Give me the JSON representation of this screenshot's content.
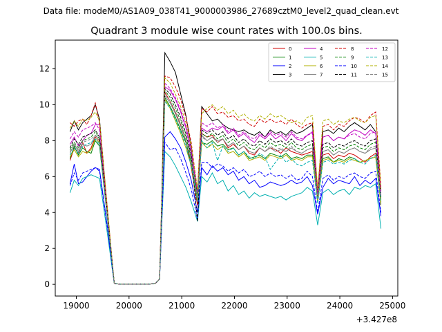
{
  "chart_data": {
    "type": "line",
    "suptitle": "Data file: modeM0/AS1A09_038T41_9000003986_27689cztM0_level2_quad_clean.evt",
    "title": "Quadrant 3 module wise count rates with 100.0s bins.",
    "xlabel": "",
    "ylabel": "",
    "x_offset_label": "+3.427e8",
    "xlim": [
      18600,
      25100
    ],
    "ylim": [
      -0.65,
      13.6
    ],
    "xticks": [
      19000,
      20000,
      21000,
      22000,
      23000,
      24000,
      25000
    ],
    "xtick_labels": [
      "19000",
      "20000",
      "21000",
      "22000",
      "23000",
      "24000",
      "25000"
    ],
    "yticks": [
      0,
      2,
      4,
      6,
      8,
      10,
      12
    ],
    "ytick_labels": [
      "0",
      "2",
      "4",
      "6",
      "8",
      "10",
      "12"
    ],
    "legend_position": "upper-right",
    "x": [
      18880,
      18960,
      19040,
      19120,
      19200,
      19280,
      19360,
      19440,
      19600,
      19680,
      19720,
      19800,
      19900,
      20000,
      20100,
      20200,
      20300,
      20400,
      20500,
      20580,
      20620,
      20680,
      20780,
      20880,
      20980,
      21080,
      21180,
      21300,
      21380,
      21480,
      21580,
      21680,
      21780,
      21880,
      21980,
      22080,
      22180,
      22280,
      22380,
      22480,
      22580,
      22680,
      22780,
      22880,
      22980,
      23080,
      23180,
      23280,
      23380,
      23480,
      23580,
      23680,
      23780,
      23880,
      23980,
      24080,
      24180,
      24280,
      24380,
      24480,
      24580,
      24680,
      24780
    ],
    "series": [
      {
        "name": "0",
        "color": "#d00000",
        "dash": false,
        "values": [
          6.9,
          7.6,
          7.3,
          7.9,
          7.3,
          7.6,
          8.2,
          8.0,
          3.5,
          1.2,
          0.05,
          0.02,
          0.02,
          0.02,
          0.02,
          0.02,
          0.02,
          0.02,
          0.05,
          0.3,
          4.0,
          10.7,
          10.2,
          9.6,
          8.9,
          8.0,
          6.5,
          4.4,
          8.4,
          8.2,
          8.3,
          7.9,
          8.1,
          7.6,
          7.8,
          7.5,
          7.7,
          7.3,
          7.2,
          7.6,
          7.4,
          7.6,
          7.5,
          7.3,
          7.6,
          7.4,
          7.3,
          7.2,
          7.3,
          7.4,
          4.6,
          7.2,
          7.3,
          7.0,
          7.2,
          7.1,
          7.3,
          7.2,
          7.0,
          6.8,
          7.1,
          7.3,
          4.6
        ]
      },
      {
        "name": "1",
        "color": "#008000",
        "dash": false,
        "values": [
          7.0,
          7.7,
          7.2,
          7.6,
          7.4,
          7.3,
          8.0,
          7.7,
          3.4,
          1.1,
          0.05,
          0.02,
          0.02,
          0.02,
          0.02,
          0.02,
          0.02,
          0.02,
          0.05,
          0.3,
          3.9,
          10.4,
          9.9,
          9.3,
          8.6,
          7.9,
          6.8,
          4.8,
          7.9,
          7.8,
          8.0,
          7.7,
          7.8,
          7.5,
          7.6,
          7.2,
          7.4,
          7.0,
          7.1,
          7.2,
          7.0,
          7.3,
          7.2,
          7.1,
          7.3,
          7.0,
          7.1,
          7.0,
          7.2,
          7.2,
          4.7,
          7.0,
          7.1,
          6.8,
          7.0,
          6.9,
          7.1,
          7.0,
          6.8,
          6.9,
          7.0,
          7.1,
          4.5
        ]
      },
      {
        "name": "2",
        "color": "#0000ff",
        "dash": false,
        "values": [
          5.6,
          6.7,
          5.6,
          5.7,
          6.0,
          6.3,
          6.5,
          6.4,
          3.0,
          0.9,
          0.05,
          0.02,
          0.02,
          0.02,
          0.02,
          0.02,
          0.02,
          0.02,
          0.05,
          0.3,
          3.3,
          8.2,
          8.5,
          8.1,
          7.6,
          6.8,
          5.8,
          4.0,
          6.5,
          6.1,
          6.6,
          6.3,
          6.5,
          6.1,
          6.3,
          5.8,
          6.0,
          5.6,
          5.8,
          5.4,
          5.5,
          5.7,
          5.6,
          5.5,
          5.6,
          5.8,
          5.6,
          5.7,
          6.0,
          5.5,
          3.9,
          5.4,
          5.9,
          5.6,
          5.8,
          5.7,
          5.6,
          6.0,
          5.5,
          5.8,
          5.6,
          5.9,
          3.8
        ]
      },
      {
        "name": "3",
        "color": "#000000",
        "dash": false,
        "values": [
          8.5,
          9.1,
          8.6,
          9.0,
          9.2,
          9.4,
          10.0,
          9.2,
          3.8,
          1.3,
          0.05,
          0.02,
          0.02,
          0.02,
          0.02,
          0.02,
          0.02,
          0.02,
          0.05,
          0.3,
          4.6,
          12.9,
          12.4,
          11.8,
          10.6,
          9.4,
          7.6,
          4.9,
          9.9,
          9.5,
          9.1,
          9.2,
          8.9,
          8.7,
          8.6,
          8.5,
          8.6,
          8.4,
          8.3,
          8.5,
          8.2,
          8.6,
          8.4,
          8.5,
          8.3,
          8.6,
          8.4,
          8.5,
          8.7,
          8.9,
          5.0,
          8.5,
          8.6,
          8.4,
          8.7,
          8.5,
          8.8,
          9.0,
          8.8,
          8.6,
          8.9,
          8.5,
          5.3
        ]
      },
      {
        "name": "4",
        "color": "#c000c0",
        "dash": false,
        "values": [
          7.8,
          8.2,
          7.7,
          8.0,
          8.3,
          8.4,
          8.9,
          8.9,
          3.7,
          1.2,
          0.05,
          0.02,
          0.02,
          0.02,
          0.02,
          0.02,
          0.02,
          0.02,
          0.05,
          0.3,
          4.3,
          11.0,
          10.8,
          10.3,
          9.6,
          8.7,
          7.3,
          5.2,
          8.7,
          8.5,
          8.7,
          8.6,
          8.8,
          8.4,
          8.6,
          8.2,
          8.4,
          8.1,
          7.9,
          8.3,
          8.1,
          8.4,
          8.1,
          8.3,
          8.0,
          8.4,
          8.1,
          8.0,
          8.3,
          8.5,
          5.1,
          8.2,
          8.3,
          8.0,
          8.2,
          8.1,
          8.4,
          8.6,
          8.5,
          8.3,
          8.6,
          8.4,
          5.2
        ]
      },
      {
        "name": "5",
        "color": "#00b0b0",
        "dash": false,
        "values": [
          5.1,
          5.8,
          5.5,
          5.9,
          6.0,
          6.1,
          6.0,
          5.9,
          2.6,
          0.9,
          0.05,
          0.02,
          0.02,
          0.02,
          0.02,
          0.02,
          0.02,
          0.02,
          0.05,
          0.3,
          3.2,
          7.4,
          7.1,
          6.6,
          6.0,
          5.4,
          4.6,
          3.5,
          6.0,
          5.7,
          6.2,
          5.6,
          5.8,
          5.2,
          5.5,
          5.0,
          5.2,
          4.8,
          5.1,
          4.9,
          5.0,
          4.9,
          4.8,
          4.9,
          4.7,
          4.9,
          5.0,
          5.1,
          5.4,
          5.2,
          3.3,
          5.1,
          5.3,
          5.0,
          5.2,
          5.3,
          5.0,
          5.4,
          5.3,
          5.5,
          5.4,
          5.6,
          3.1
        ]
      },
      {
        "name": "6",
        "color": "#b0b000",
        "dash": false,
        "values": [
          7.1,
          7.5,
          7.1,
          7.4,
          7.3,
          7.5,
          8.1,
          7.9,
          3.4,
          1.1,
          0.05,
          0.02,
          0.02,
          0.02,
          0.02,
          0.02,
          0.02,
          0.02,
          0.05,
          0.3,
          3.9,
          10.3,
          9.8,
          9.1,
          8.4,
          7.6,
          6.6,
          4.6,
          7.9,
          7.6,
          7.8,
          7.5,
          7.7,
          7.3,
          7.4,
          7.1,
          7.3,
          6.9,
          7.0,
          7.1,
          6.9,
          7.2,
          7.1,
          7.0,
          7.2,
          6.9,
          7.0,
          6.9,
          7.1,
          7.1,
          4.6,
          6.9,
          7.0,
          6.8,
          6.9,
          6.8,
          7.0,
          6.9,
          6.8,
          6.9,
          7.0,
          7.1,
          4.4
        ]
      },
      {
        "name": "7",
        "color": "#808080",
        "dash": false,
        "values": [
          7.3,
          7.8,
          7.4,
          7.8,
          7.7,
          7.8,
          8.3,
          8.1,
          3.5,
          1.2,
          0.05,
          0.02,
          0.02,
          0.02,
          0.02,
          0.02,
          0.02,
          0.02,
          0.05,
          0.3,
          4.1,
          10.5,
          10.1,
          9.5,
          8.8,
          8.0,
          6.9,
          4.9,
          8.3,
          8.0,
          8.2,
          8.0,
          8.1,
          7.7,
          7.9,
          7.5,
          7.7,
          7.4,
          7.3,
          7.6,
          7.4,
          7.6,
          7.4,
          7.5,
          7.4,
          7.6,
          7.4,
          7.3,
          7.5,
          7.6,
          4.8,
          7.4,
          7.5,
          7.2,
          7.4,
          7.3,
          7.5,
          7.6,
          7.4,
          7.3,
          7.5,
          7.6,
          4.7
        ]
      },
      {
        "name": "8",
        "color": "#d00000",
        "dash": true,
        "values": [
          9.0,
          8.8,
          9.1,
          9.2,
          8.9,
          9.4,
          10.1,
          9.0,
          3.9,
          1.3,
          0.05,
          0.02,
          0.02,
          0.02,
          0.02,
          0.02,
          0.02,
          0.02,
          0.05,
          0.3,
          4.5,
          11.6,
          11.5,
          11.0,
          10.3,
          9.3,
          7.9,
          5.2,
          9.8,
          9.6,
          9.9,
          9.5,
          9.6,
          9.3,
          9.4,
          9.1,
          9.2,
          8.9,
          8.8,
          9.2,
          9.0,
          9.2,
          9.0,
          9.1,
          8.9,
          9.2,
          8.9,
          8.7,
          8.9,
          9.0,
          5.2,
          8.8,
          8.9,
          8.6,
          8.9,
          8.8,
          9.1,
          9.3,
          9.2,
          9.0,
          9.4,
          9.6,
          5.4
        ]
      },
      {
        "name": "9",
        "color": "#008000",
        "dash": true,
        "values": [
          7.5,
          7.9,
          7.6,
          8.0,
          8.1,
          8.2,
          8.5,
          8.1,
          3.5,
          1.2,
          0.05,
          0.02,
          0.02,
          0.02,
          0.02,
          0.02,
          0.02,
          0.02,
          0.05,
          0.3,
          4.1,
          10.8,
          10.4,
          9.8,
          9.1,
          8.2,
          7.0,
          4.9,
          8.4,
          8.2,
          8.4,
          8.1,
          8.3,
          7.9,
          8.1,
          7.7,
          7.9,
          7.6,
          7.5,
          7.8,
          7.6,
          7.9,
          7.7,
          7.8,
          7.6,
          7.9,
          7.6,
          7.5,
          7.7,
          7.8,
          4.9,
          7.6,
          7.7,
          7.4,
          7.6,
          7.5,
          7.7,
          7.8,
          7.6,
          7.5,
          7.8,
          7.9,
          4.8
        ]
      },
      {
        "name": "10",
        "color": "#0000ff",
        "dash": true,
        "values": [
          5.5,
          6.2,
          5.8,
          6.2,
          6.3,
          6.4,
          6.5,
          6.3,
          2.9,
          1.0,
          0.05,
          0.02,
          0.02,
          0.02,
          0.02,
          0.02,
          0.02,
          0.02,
          0.05,
          0.3,
          3.4,
          7.9,
          7.5,
          7.6,
          7.0,
          6.2,
          5.3,
          3.6,
          6.8,
          6.8,
          6.5,
          6.7,
          6.6,
          6.3,
          6.5,
          6.2,
          6.4,
          6.0,
          6.1,
          6.3,
          6.0,
          6.2,
          6.0,
          6.1,
          5.9,
          6.1,
          5.8,
          5.9,
          6.3,
          6.0,
          4.0,
          5.9,
          6.1,
          5.8,
          6.0,
          5.9,
          6.1,
          6.2,
          6.0,
          5.9,
          6.2,
          6.3,
          4.0
        ]
      },
      {
        "name": "11",
        "color": "#000000",
        "dash": true,
        "values": [
          7.6,
          8.1,
          7.8,
          8.2,
          8.3,
          8.4,
          8.6,
          8.2,
          3.6,
          1.2,
          0.05,
          0.02,
          0.02,
          0.02,
          0.02,
          0.02,
          0.02,
          0.02,
          0.05,
          0.3,
          4.2,
          10.9,
          10.6,
          10.0,
          9.3,
          8.4,
          7.2,
          3.5,
          8.6,
          8.4,
          8.6,
          8.3,
          8.5,
          8.1,
          8.3,
          7.9,
          8.1,
          7.8,
          7.7,
          8.0,
          7.8,
          8.1,
          7.9,
          8.0,
          7.8,
          8.1,
          7.8,
          7.7,
          7.9,
          8.0,
          4.9,
          7.8,
          7.9,
          7.6,
          7.8,
          7.7,
          7.9,
          8.0,
          7.8,
          7.7,
          8.0,
          8.1,
          4.9
        ]
      },
      {
        "name": "12",
        "color": "#c000c0",
        "dash": true,
        "values": [
          8.1,
          8.5,
          8.2,
          8.6,
          8.7,
          8.8,
          9.0,
          8.6,
          3.7,
          1.2,
          0.05,
          0.02,
          0.02,
          0.02,
          0.02,
          0.02,
          0.02,
          0.02,
          0.05,
          0.3,
          4.3,
          11.2,
          10.9,
          10.4,
          9.7,
          8.8,
          7.5,
          5.1,
          9.0,
          8.8,
          9.0,
          8.7,
          8.9,
          8.5,
          8.7,
          8.3,
          8.5,
          8.2,
          8.1,
          8.4,
          8.2,
          8.5,
          8.3,
          8.4,
          8.2,
          8.5,
          8.2,
          8.1,
          8.3,
          8.4,
          5.0,
          8.2,
          8.3,
          8.0,
          8.2,
          8.1,
          8.3,
          8.4,
          8.2,
          8.1,
          8.4,
          8.5,
          5.0
        ]
      },
      {
        "name": "13",
        "color": "#00b0b0",
        "dash": true,
        "values": [
          7.2,
          7.6,
          7.3,
          7.7,
          7.8,
          7.9,
          8.1,
          7.8,
          3.4,
          1.1,
          0.05,
          0.02,
          0.02,
          0.02,
          0.02,
          0.02,
          0.02,
          0.02,
          0.05,
          0.3,
          4.0,
          10.2,
          9.8,
          9.2,
          8.5,
          7.7,
          6.6,
          4.6,
          8.0,
          7.6,
          7.9,
          6.9,
          7.7,
          7.4,
          7.6,
          7.2,
          7.4,
          7.1,
          7.0,
          7.3,
          7.1,
          6.4,
          6.8,
          7.2,
          6.8,
          7.0,
          6.7,
          6.6,
          6.8,
          6.9,
          4.5,
          6.8,
          6.9,
          6.7,
          6.8,
          6.7,
          6.9,
          7.0,
          6.8,
          6.7,
          7.0,
          7.2,
          4.6
        ]
      },
      {
        "name": "14",
        "color": "#b0b000",
        "dash": true,
        "values": [
          8.7,
          9.1,
          8.8,
          9.2,
          9.1,
          9.3,
          9.6,
          9.1,
          3.9,
          1.3,
          0.05,
          0.02,
          0.02,
          0.02,
          0.02,
          0.02,
          0.02,
          0.02,
          0.05,
          0.3,
          4.6,
          11.5,
          11.2,
          10.6,
          9.9,
          9.0,
          7.7,
          5.3,
          9.5,
          9.8,
          10.0,
          9.7,
          9.9,
          9.5,
          9.7,
          9.3,
          9.5,
          9.2,
          9.1,
          9.4,
          9.2,
          9.5,
          9.3,
          9.4,
          9.2,
          9.0,
          9.1,
          8.9,
          9.3,
          9.4,
          5.3,
          9.1,
          9.2,
          8.9,
          9.1,
          9.0,
          9.2,
          9.3,
          9.1,
          9.0,
          9.3,
          9.4,
          5.3
        ]
      },
      {
        "name": "15",
        "color": "#808080",
        "dash": true,
        "values": [
          7.4,
          7.8,
          7.5,
          7.9,
          8.0,
          8.1,
          8.3,
          7.9,
          3.5,
          1.2,
          0.05,
          0.02,
          0.02,
          0.02,
          0.02,
          0.02,
          0.02,
          0.02,
          0.05,
          0.3,
          4.1,
          10.6,
          10.2,
          9.6,
          8.9,
          8.0,
          6.9,
          4.8,
          8.2,
          8.0,
          8.2,
          7.9,
          8.1,
          7.7,
          7.9,
          7.5,
          7.7,
          7.4,
          7.3,
          7.6,
          7.4,
          7.7,
          7.5,
          7.6,
          7.4,
          7.7,
          7.4,
          7.3,
          7.5,
          7.6,
          4.8,
          7.4,
          7.5,
          7.2,
          7.4,
          7.3,
          7.5,
          7.6,
          7.4,
          7.3,
          7.6,
          7.7,
          4.8
        ]
      }
    ]
  }
}
